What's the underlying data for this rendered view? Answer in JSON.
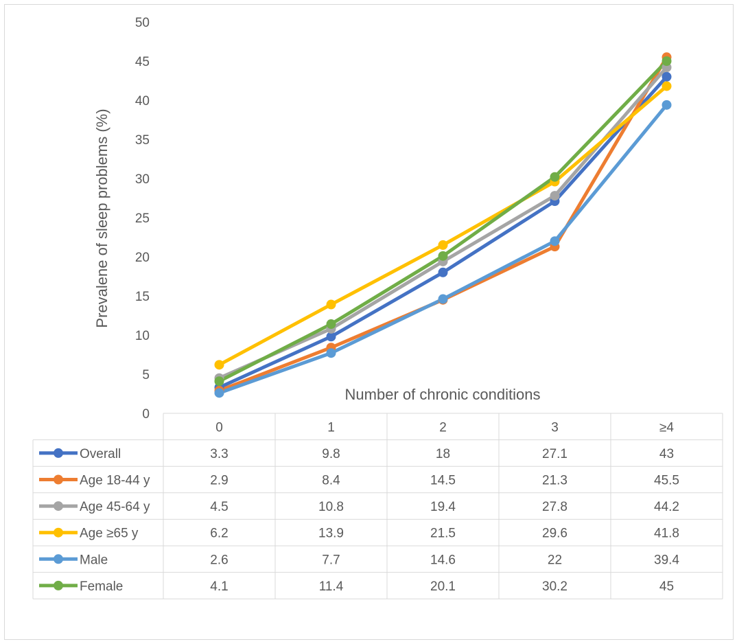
{
  "chart_data": {
    "type": "line",
    "xlabel": "Number of chronic conditions",
    "ylabel": "Prevalene of sleep problems (%)",
    "ylim": [
      0,
      50
    ],
    "yticks": [
      "0",
      "5",
      "10",
      "15",
      "20",
      "25",
      "30",
      "35",
      "40",
      "45",
      "50"
    ],
    "categories": [
      "0",
      "1",
      "2",
      "3",
      "≥4"
    ],
    "grid": false,
    "legend": "data-table",
    "series": [
      {
        "name": "Overall",
        "color": "#4472C4",
        "values": [
          3.3,
          9.8,
          18,
          27.1,
          43
        ],
        "labels": [
          "3.3",
          "9.8",
          "18",
          "27.1",
          "43"
        ]
      },
      {
        "name": "Age 18-44 y",
        "color": "#ED7D31",
        "values": [
          2.9,
          8.4,
          14.5,
          21.3,
          45.5
        ],
        "labels": [
          "2.9",
          "8.4",
          "14.5",
          "21.3",
          "45.5"
        ]
      },
      {
        "name": "Age 45-64 y",
        "color": "#A5A5A5",
        "values": [
          4.5,
          10.8,
          19.4,
          27.8,
          44.2
        ],
        "labels": [
          "4.5",
          "10.8",
          "19.4",
          "27.8",
          "44.2"
        ]
      },
      {
        "name": "Age ≥65 y",
        "color": "#FFC000",
        "values": [
          6.2,
          13.9,
          21.5,
          29.6,
          41.8
        ],
        "labels": [
          "6.2",
          "13.9",
          "21.5",
          "29.6",
          "41.8"
        ]
      },
      {
        "name": "Male",
        "color": "#5B9BD5",
        "values": [
          2.6,
          7.7,
          14.6,
          22,
          39.4
        ],
        "labels": [
          "2.6",
          "7.7",
          "14.6",
          "22",
          "39.4"
        ]
      },
      {
        "name": "Female",
        "color": "#70AD47",
        "values": [
          4.1,
          11.4,
          20.1,
          30.2,
          45
        ],
        "labels": [
          "4.1",
          "11.4",
          "20.1",
          "30.2",
          "45"
        ]
      }
    ]
  }
}
